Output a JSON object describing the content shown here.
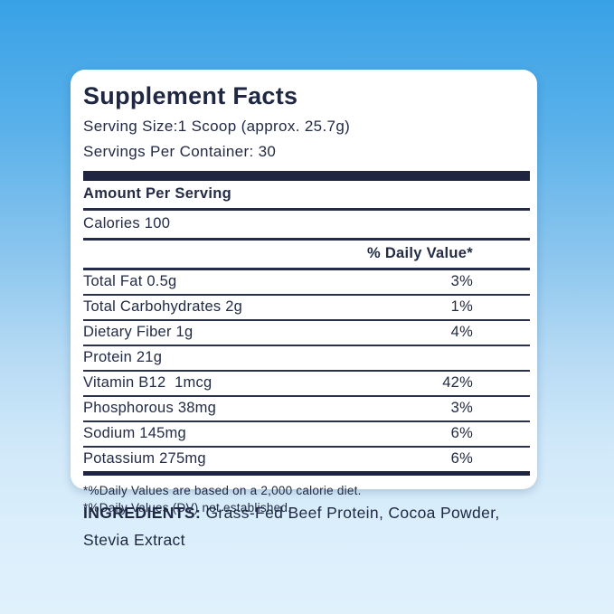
{
  "panel": {
    "title": "Supplement Facts",
    "serving_size": "Serving Size:1 Scoop (approx. 25.7g)",
    "servings_per_container": "Servings Per Container: 30",
    "amount_per_serving": "Amount Per Serving",
    "calories": "Calories 100",
    "daily_value_header": "% Daily Value*",
    "rows": [
      {
        "label": "Total Fat 0.5g",
        "value": "3%"
      },
      {
        "label": "Total Carbohydrates 2g",
        "value": "1%"
      },
      {
        "label": "Dietary Fiber 1g",
        "value": "4%"
      },
      {
        "label": "Protein 21g",
        "value": ""
      },
      {
        "label": "Vitamin B12  1mcg",
        "value": "42%"
      },
      {
        "label": "Phosphorous 38mg",
        "value": "3%"
      },
      {
        "label": "Sodium 145mg",
        "value": "6%"
      },
      {
        "label": "Potassium 275mg",
        "value": "6%"
      }
    ],
    "footnotes": [
      "*%Daily Values are based on a 2,000 calorie diet.",
      "*%Daily Values (DV) not established."
    ]
  },
  "ingredients": {
    "heading": "INGREDIENTS:",
    "text": " Grass-Fed Beef Protein, Cocoa Powder, Stevia Extract"
  },
  "colors": {
    "navy_text": "#232b45",
    "bar": "#1f2440",
    "card_background": "#ffffff",
    "background_top": "#38a1e6",
    "background_bottom": "#e0f1fc"
  }
}
